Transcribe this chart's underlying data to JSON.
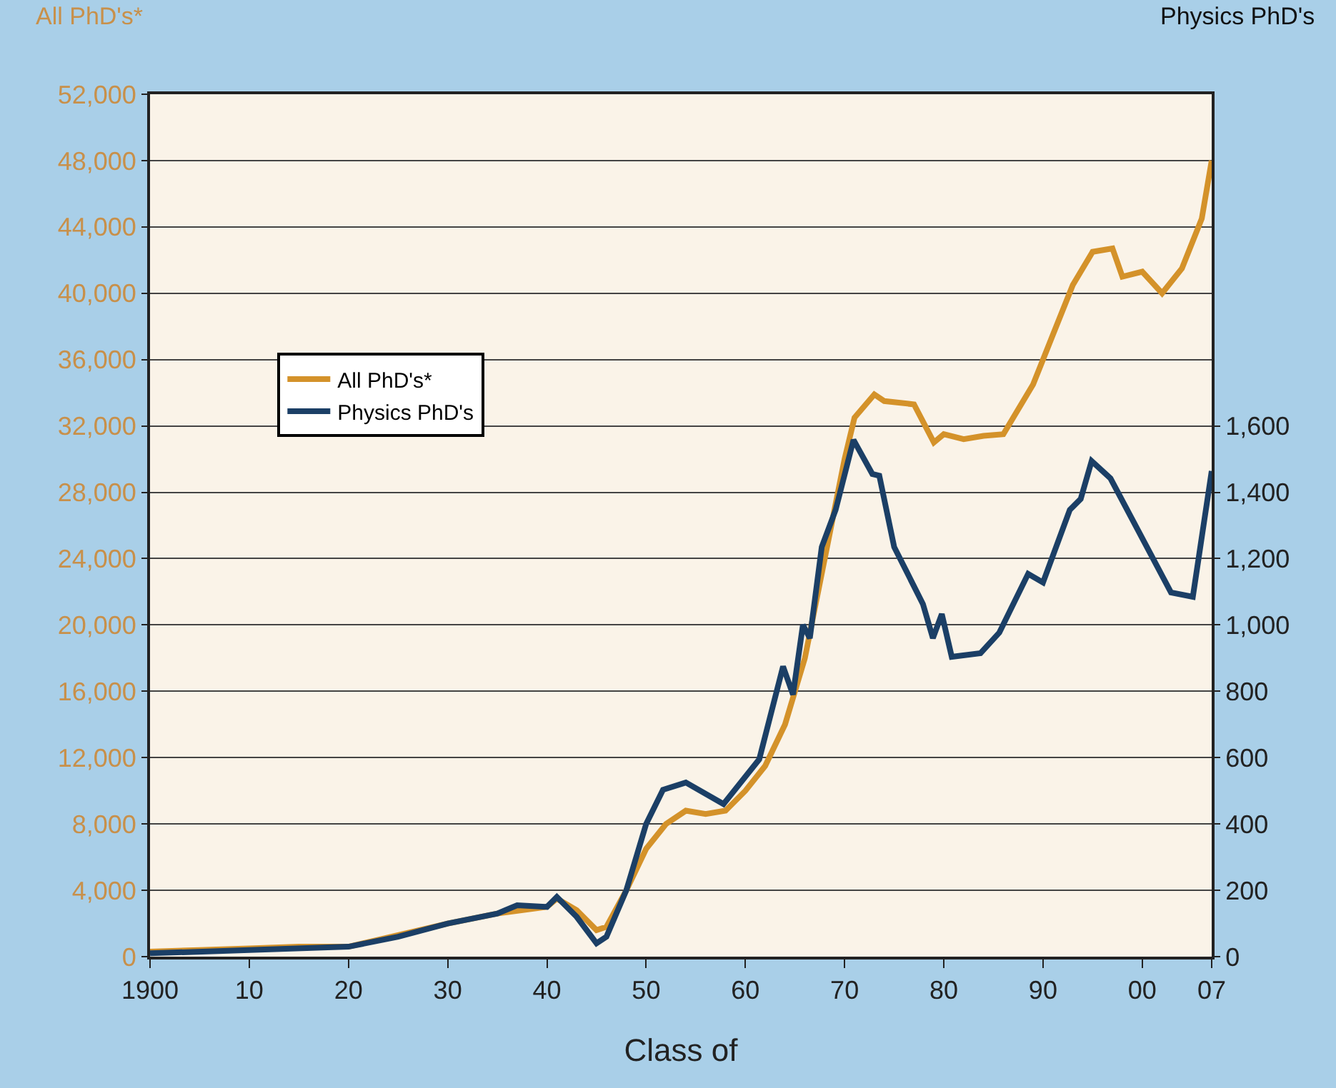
{
  "chart_data": {
    "type": "line",
    "xlabel": "Class of",
    "ylabel": "All PhD's*",
    "y2label": "Physics PhD's",
    "xlim": [
      1900,
      2007
    ],
    "xticks": [
      {
        "value": 1900,
        "label": "1900"
      },
      {
        "value": 1910,
        "label": "10"
      },
      {
        "value": 1920,
        "label": "20"
      },
      {
        "value": 1930,
        "label": "30"
      },
      {
        "value": 1940,
        "label": "40"
      },
      {
        "value": 1950,
        "label": "50"
      },
      {
        "value": 1960,
        "label": "60"
      },
      {
        "value": 1970,
        "label": "70"
      },
      {
        "value": 1980,
        "label": "80"
      },
      {
        "value": 1990,
        "label": "90"
      },
      {
        "value": 2000,
        "label": "00"
      },
      {
        "value": 2007,
        "label": "07"
      }
    ],
    "ylim": [
      0,
      52000
    ],
    "yticks": [
      {
        "value": 0,
        "label": "0"
      },
      {
        "value": 4000,
        "label": "4,000"
      },
      {
        "value": 8000,
        "label": "8,000"
      },
      {
        "value": 12000,
        "label": "12,000"
      },
      {
        "value": 16000,
        "label": "16,000"
      },
      {
        "value": 20000,
        "label": "20,000"
      },
      {
        "value": 24000,
        "label": "24,000"
      },
      {
        "value": 28000,
        "label": "28,000"
      },
      {
        "value": 32000,
        "label": "32,000"
      },
      {
        "value": 36000,
        "label": "36,000"
      },
      {
        "value": 40000,
        "label": "40,000"
      },
      {
        "value": 44000,
        "label": "44,000"
      },
      {
        "value": 48000,
        "label": "48,000"
      },
      {
        "value": 52000,
        "label": "52,000"
      }
    ],
    "y2lim": [
      0,
      2600
    ],
    "y2ticks": [
      {
        "value": 0,
        "label": "0"
      },
      {
        "value": 200,
        "label": "200"
      },
      {
        "value": 400,
        "label": "400"
      },
      {
        "value": 600,
        "label": "600"
      },
      {
        "value": 800,
        "label": "800"
      },
      {
        "value": 1000,
        "label": "1,000"
      },
      {
        "value": 1200,
        "label": "1,200"
      },
      {
        "value": 1400,
        "label": "1,400"
      },
      {
        "value": 1600,
        "label": "1,600"
      }
    ],
    "grid": "y",
    "legend": "top left",
    "marker": "none",
    "line_style": "solid",
    "series": [
      {
        "name": "All PhD's*",
        "color": "#d4922a",
        "x": [
          1900,
          1905,
          1910,
          1915,
          1920,
          1925,
          1930,
          1935,
          1940,
          1941,
          1943,
          1945,
          1946,
          1948,
          1950,
          1952,
          1954,
          1956,
          1958,
          1960,
          1962,
          1964,
          1966,
          1968,
          1970,
          1971,
          1973,
          1974,
          1977,
          1979,
          1980,
          1982,
          1984,
          1986,
          1987,
          1989,
          1991,
          1993,
          1995,
          1997,
          1998,
          2000,
          2002,
          2004,
          2006,
          2007
        ],
        "values": [
          300,
          400,
          500,
          600,
          600,
          1300,
          2000,
          2600,
          3000,
          3500,
          2800,
          1600,
          1800,
          4000,
          6500,
          8000,
          8800,
          8600,
          8800,
          10000,
          11500,
          14000,
          18000,
          24000,
          30000,
          32500,
          33900,
          33500,
          33300,
          31000,
          31500,
          31200,
          31400,
          31500,
          32500,
          34500,
          37500,
          40500,
          42500,
          42700,
          41000,
          41300,
          40000,
          41500,
          44500,
          48000
        ]
      },
      {
        "name": "Physics PhD's",
        "color": "#1b3f66",
        "axis": "y2",
        "x": [
          1900,
          1910,
          1920,
          1925,
          1930,
          1935,
          1937,
          1940,
          1941,
          1943,
          1945,
          1946,
          1948,
          1950,
          1951.7,
          1954,
          1957.8,
          1961.4,
          1963.8,
          1964.8,
          1965.8,
          1966.5,
          1967.7,
          1969.1,
          1970.9,
          1972.8,
          1973.5,
          1975,
          1977.9,
          1978.9,
          1979.8,
          1980.8,
          1983.7,
          1985.6,
          1988.5,
          1990,
          1992.7,
          1993.8,
          1994.9,
          1996.8,
          2002.9,
          2005.1,
          2007
        ],
        "values": [
          10,
          20,
          30,
          60,
          100,
          130,
          155,
          150,
          180,
          120,
          40,
          60,
          200,
          400,
          503,
          525,
          460,
          595,
          875,
          790,
          1000,
          960,
          1235,
          1347,
          1558,
          1455,
          1450,
          1235,
          1063,
          960,
          1033,
          904,
          915,
          977,
          1154,
          1128,
          1347,
          1380,
          1494,
          1442,
          1098,
          1085,
          1464
        ]
      }
    ]
  }
}
